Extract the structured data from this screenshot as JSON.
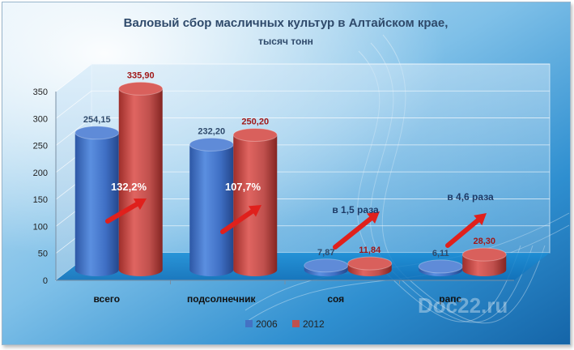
{
  "chart_data": {
    "type": "bar",
    "title": "Валовый сбор масличных культур в Алтайском крае,",
    "subtitle": "тысяч тонн",
    "categories": [
      "всего",
      "подсолнечник",
      "соя",
      "рапс"
    ],
    "series": [
      {
        "name": "2006",
        "values": [
          254.15,
          232.2,
          7.87,
          6.11
        ],
        "labels": [
          "254,15",
          "232,20",
          "7,87",
          "6,11"
        ],
        "color": "#4472c4"
      },
      {
        "name": "2012",
        "values": [
          335.9,
          250.2,
          11.84,
          28.3
        ],
        "labels": [
          "335,90",
          "250,20",
          "11,84",
          "28,30"
        ],
        "color": "#c0504d"
      }
    ],
    "yticks": [
      "0",
      "50",
      "100",
      "150",
      "200",
      "250",
      "300",
      "350"
    ],
    "ylim": [
      0,
      350
    ],
    "annotations": [
      "132,2%",
      "107,7%",
      "в 1,5 раза",
      "в 4,6 раза"
    ],
    "legend_position": "bottom"
  },
  "colors": {
    "series_2006": "#4472c4",
    "series_2012": "#c0504d",
    "arrow": "#e0201c",
    "label_2006": "#2f4a6b",
    "label_2012": "#a01818"
  },
  "watermark": "Doc22.ru"
}
